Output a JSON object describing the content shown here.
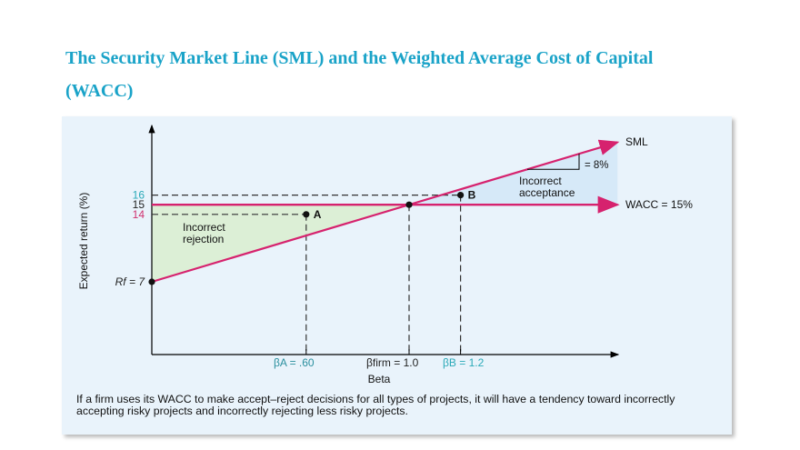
{
  "title": "The Security Market Line (SML) and the Weighted Average Cost of Capital (WACC)",
  "chart_data": {
    "type": "line",
    "xlabel": "Beta",
    "ylabel": "Expected return (%)",
    "series": [
      {
        "name": "SML",
        "x": [
          0,
          1.0,
          1.2
        ],
        "y": [
          7,
          15,
          16.6
        ],
        "slope_label": "= 8%"
      },
      {
        "name": "WACC = 15%",
        "y_constant": 15
      }
    ],
    "points": [
      {
        "label": "A",
        "beta": 0.6,
        "return": 14
      },
      {
        "label": "B",
        "beta": 1.2,
        "return": 16
      },
      {
        "label": "",
        "beta": 1.0,
        "return": 15
      },
      {
        "label": "",
        "beta": 0,
        "return": 7
      }
    ],
    "y_tick_labels": [
      {
        "text": "16",
        "value": 16,
        "color": "#2aa9b8"
      },
      {
        "text": "15",
        "value": 15,
        "color": "#222222"
      },
      {
        "text": "14",
        "value": 14,
        "color": "#d0306e"
      },
      {
        "text": "Rf = 7",
        "value": 7,
        "color": "#222222"
      }
    ],
    "x_tick_labels": [
      {
        "text": "βA = .60",
        "value": 0.6,
        "color": "#2a8f9e"
      },
      {
        "text": "βfirm = 1.0",
        "value": 1.0,
        "color": "#222222"
      },
      {
        "text": "βB = 1.2",
        "value": 1.2,
        "color": "#2aa9b8"
      }
    ],
    "regions": [
      {
        "label": "Incorrect rejection",
        "color": "#dcefd6"
      },
      {
        "label": "Incorrect acceptance",
        "color": "#d6e9f8"
      }
    ],
    "line_color": "#d6226e"
  },
  "caption": "If a firm uses its WACC to make accept–reject decisions for all types of projects, it will have a tendency toward incorrectly accepting risky projects and incorrectly rejecting less risky projects."
}
